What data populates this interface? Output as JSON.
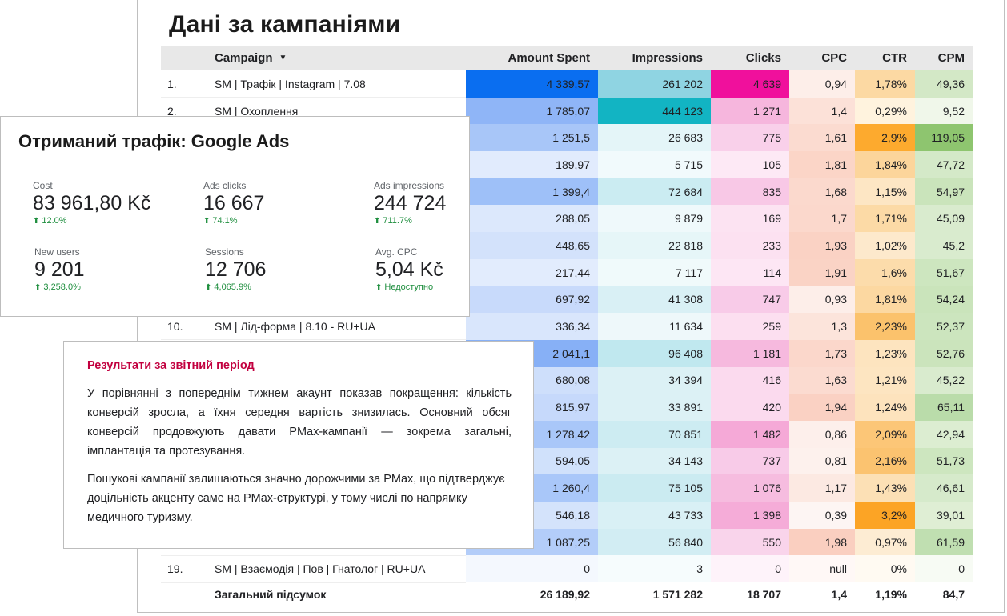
{
  "table": {
    "title": "Дані за кампаніями",
    "headers": {
      "campaign": "Campaign",
      "amount": "Amount Spent",
      "impressions": "Impressions",
      "clicks": "Clicks",
      "cpc": "CPC",
      "ctr": "CTR",
      "cpm": "CPM"
    },
    "rows": [
      {
        "idx": "1.",
        "name": "SM | Трафік | Instagram | 7.08",
        "amount": "4 339,57",
        "impressions": "261 202",
        "clicks": "4 639",
        "cpc": "0,94",
        "ctr": "1,78%",
        "cpm": "49,36"
      },
      {
        "idx": "2.",
        "name": "SM | Охоплення",
        "amount": "1 785,07",
        "impressions": "444 123",
        "clicks": "1 271",
        "cpc": "1,4",
        "ctr": "0,29%",
        "cpm": "9,52"
      },
      {
        "idx": "",
        "name": "",
        "amount": "1 251,5",
        "impressions": "26 683",
        "clicks": "775",
        "cpc": "1,61",
        "ctr": "2,9%",
        "cpm": "119,05"
      },
      {
        "idx": "",
        "name": "",
        "amount": "189,97",
        "impressions": "5 715",
        "clicks": "105",
        "cpc": "1,81",
        "ctr": "1,84%",
        "cpm": "47,72"
      },
      {
        "idx": "",
        "name": "",
        "amount": "1 399,4",
        "impressions": "72 684",
        "clicks": "835",
        "cpc": "1,68",
        "ctr": "1,15%",
        "cpm": "54,97"
      },
      {
        "idx": "",
        "name": "",
        "amount": "288,05",
        "impressions": "9 879",
        "clicks": "169",
        "cpc": "1,7",
        "ctr": "1,71%",
        "cpm": "45,09"
      },
      {
        "idx": "",
        "name": "",
        "amount": "448,65",
        "impressions": "22 818",
        "clicks": "233",
        "cpc": "1,93",
        "ctr": "1,02%",
        "cpm": "45,2"
      },
      {
        "idx": "",
        "name": "",
        "amount": "217,44",
        "impressions": "7 117",
        "clicks": "114",
        "cpc": "1,91",
        "ctr": "1,6%",
        "cpm": "51,67"
      },
      {
        "idx": "",
        "name": "",
        "amount": "697,92",
        "impressions": "41 308",
        "clicks": "747",
        "cpc": "0,93",
        "ctr": "1,81%",
        "cpm": "54,24"
      },
      {
        "idx": "10.",
        "name": "SM | Лід-форма | 8.10 - RU+UA",
        "amount": "336,34",
        "impressions": "11 634",
        "clicks": "259",
        "cpc": "1,3",
        "ctr": "2,23%",
        "cpm": "52,37"
      },
      {
        "idx": "",
        "name": "",
        "amount": "2 041,1",
        "impressions": "96 408",
        "clicks": "1 181",
        "cpc": "1,73",
        "ctr": "1,23%",
        "cpm": "52,76"
      },
      {
        "idx": "",
        "name": "",
        "amount": "680,08",
        "impressions": "34 394",
        "clicks": "416",
        "cpc": "1,63",
        "ctr": "1,21%",
        "cpm": "45,22"
      },
      {
        "idx": "",
        "name": "",
        "amount": "815,97",
        "impressions": "33 891",
        "clicks": "420",
        "cpc": "1,94",
        "ctr": "1,24%",
        "cpm": "65,11"
      },
      {
        "idx": "",
        "name": "",
        "amount": "1 278,42",
        "impressions": "70 851",
        "clicks": "1 482",
        "cpc": "0,86",
        "ctr": "2,09%",
        "cpm": "42,94"
      },
      {
        "idx": "",
        "name": "",
        "amount": "594,05",
        "impressions": "34 143",
        "clicks": "737",
        "cpc": "0,81",
        "ctr": "2,16%",
        "cpm": "51,73"
      },
      {
        "idx": "",
        "name": "",
        "amount": "1 260,4",
        "impressions": "75 105",
        "clicks": "1 076",
        "cpc": "1,17",
        "ctr": "1,43%",
        "cpm": "46,61"
      },
      {
        "idx": "",
        "name": "",
        "amount": "546,18",
        "impressions": "43 733",
        "clicks": "1 398",
        "cpc": "0,39",
        "ctr": "3,2%",
        "cpm": "39,01"
      },
      {
        "idx": "",
        "name": "",
        "amount": "1 087,25",
        "impressions": "56 840",
        "clicks": "550",
        "cpc": "1,98",
        "ctr": "0,97%",
        "cpm": "61,59"
      },
      {
        "idx": "19.",
        "name": "SM | Взаємодія | Пов | Гнатолог | RU+UA",
        "amount": "0",
        "impressions": "3",
        "clicks": "0",
        "cpc": "null",
        "ctr": "0%",
        "cpm": "0"
      }
    ],
    "total": {
      "label": "Загальний підсумок",
      "amount": "26 189,92",
      "impressions": "1 571 282",
      "clicks": "18 707",
      "cpc": "1,4",
      "ctr": "1,19%",
      "cpm": "84,7"
    },
    "heat": {
      "amount": [
        "#0a6ef0",
        "#8fb5f7",
        "#a8c6f8",
        "#e1ebfd",
        "#9ec0f8",
        "#dce8fc",
        "#d3e2fb",
        "#e2ecfd",
        "#c8dafb",
        "#d9e6fc",
        "#87b0f6",
        "#cedffb",
        "#c6d9fb",
        "#a9c7f9",
        "#d0e1fb",
        "#a9c7f9",
        "#d4e3fb",
        "#b3cdf9",
        "#f4f8fe"
      ],
      "impressions": [
        "#8fd4e2",
        "#12b4c3",
        "#e4f5f8",
        "#f1fafc",
        "#cbecf2",
        "#eff9fb",
        "#e6f6f8",
        "#f0fafb",
        "#d9f0f5",
        "#eef8fa",
        "#c0e8ef",
        "#dcf1f5",
        "#dcf1f5",
        "#cdecf2",
        "#dcf1f5",
        "#cbebf1",
        "#d9f0f5",
        "#d2edf3",
        "#f6fcfd"
      ],
      "clicks": [
        "#f0109c",
        "#f6b6dd",
        "#f9d0ea",
        "#fde9f5",
        "#f8c8e6",
        "#fce3f2",
        "#fce1f1",
        "#fde6f4",
        "#f8cbe8",
        "#fcdff0",
        "#f6b9de",
        "#fbdaee",
        "#fbdaee",
        "#f5a9d7",
        "#f8cbe8",
        "#f6bcdf",
        "#f5acd8",
        "#f9d4eb",
        "#fef3fa"
      ],
      "cpc": [
        "#fdeee9",
        "#fce1d8",
        "#fbdbd0",
        "#fbd5c7",
        "#fbd9cd",
        "#fbd8cc",
        "#fad2c4",
        "#fad3c5",
        "#fdeee9",
        "#fce4db",
        "#fbd7cb",
        "#fbdbd0",
        "#fad1c3",
        "#fdefeb",
        "#fdf1ed",
        "#fce9e2",
        "#fdf5f3",
        "#facfc0",
        "#fff8f6"
      ],
      "ctr": [
        "#fcd9a3",
        "#fff3de",
        "#fdaa2e",
        "#fcd59b",
        "#fde6c4",
        "#fcdaa6",
        "#fde9cc",
        "#fcdcab",
        "#fcd8a1",
        "#fbc26c",
        "#fde4bf",
        "#fde5c1",
        "#fde3bd",
        "#fcc677",
        "#fbc370",
        "#fce0b5",
        "#fca425",
        "#fdecd3",
        "#fffaf2"
      ],
      "cpm": [
        "#d3e8c6",
        "#f0f7ea",
        "#8ec56f",
        "#d4e9c8",
        "#cae4bb",
        "#d9ebce",
        "#d9ebce",
        "#cde6bf",
        "#cae4bb",
        "#cce5be",
        "#cbe4bc",
        "#d9ebce",
        "#badcaa",
        "#dcedd1",
        "#cde6bf",
        "#d6eacb",
        "#dfeed4",
        "#c0dfb1",
        "#f7fbf4"
      ]
    }
  },
  "ads": {
    "title": "Отриманий трафік: Google Ads",
    "metrics": [
      {
        "label": "Cost",
        "value": "83 961,80 Kč",
        "delta": "12.0%"
      },
      {
        "label": "Ads clicks",
        "value": "16 667",
        "delta": "74.1%"
      },
      {
        "label": "Ads impressions",
        "value": "244 724",
        "delta": "711.7%"
      },
      {
        "label": "New users",
        "value": "9 201",
        "delta": "3,258.0%"
      },
      {
        "label": "Sessions",
        "value": "12 706",
        "delta": "4,065.9%"
      },
      {
        "label": "Avg. CPC",
        "value": "5,04 Kč",
        "delta": "Недоступно"
      }
    ]
  },
  "results": {
    "title": "Результати за звітний період",
    "paragraph1": "У порівнянні з попереднім тижнем акаунт показав покращення: кількість конверсій зросла, а їхня середня вартість знизилась. Основний обсяг конверсій продовжують давати PMax-кампанії — зокрема загальні, імплантація та протезування.",
    "paragraph2": "Пошукові кампанії залишаються значно дорожчими за PMax, що підтверджує доцільність акценту саме на PMax-структурі, у тому числі по напрямку медичного туризму."
  },
  "icons": {
    "sort": "sort-desc-icon",
    "delta": "arrow-up-icon"
  }
}
